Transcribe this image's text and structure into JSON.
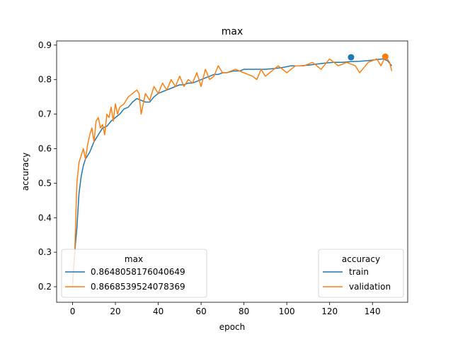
{
  "chart_data": {
    "type": "line",
    "title": "max",
    "xlabel": "epoch",
    "ylabel": "accuracy",
    "xlim": [
      -7.45,
      156.45
    ],
    "ylim": [
      0.155,
      0.912
    ],
    "xticks": [
      0,
      20,
      40,
      60,
      80,
      100,
      120,
      140
    ],
    "yticks": [
      0.2,
      0.3,
      0.4,
      0.5,
      0.6,
      0.7,
      0.8,
      0.9
    ],
    "grid": false,
    "series": [
      {
        "name": "train",
        "color": "#1f77b4",
        "x": [
          0,
          1,
          2,
          3,
          4,
          5,
          6,
          8,
          10,
          12,
          14,
          16,
          18,
          20,
          22,
          24,
          26,
          28,
          30,
          32,
          34,
          36,
          38,
          40,
          42,
          44,
          46,
          48,
          50,
          52,
          54,
          56,
          58,
          60,
          62,
          64,
          66,
          68,
          70,
          72,
          75,
          78,
          80,
          83,
          86,
          90,
          94,
          98,
          102,
          106,
          110,
          114,
          118,
          122,
          126,
          130,
          134,
          138,
          142,
          145,
          147,
          149
        ],
        "values": [
          0.21,
          0.3,
          0.37,
          0.47,
          0.52,
          0.55,
          0.57,
          0.59,
          0.62,
          0.64,
          0.66,
          0.665,
          0.68,
          0.69,
          0.7,
          0.715,
          0.72,
          0.735,
          0.745,
          0.74,
          0.735,
          0.735,
          0.75,
          0.76,
          0.765,
          0.77,
          0.775,
          0.78,
          0.785,
          0.785,
          0.79,
          0.79,
          0.795,
          0.8,
          0.805,
          0.81,
          0.815,
          0.815,
          0.82,
          0.82,
          0.825,
          0.825,
          0.83,
          0.83,
          0.83,
          0.83,
          0.832,
          0.835,
          0.84,
          0.84,
          0.842,
          0.845,
          0.848,
          0.85,
          0.85,
          0.852,
          0.853,
          0.855,
          0.858,
          0.86,
          0.855,
          0.84
        ]
      },
      {
        "name": "validation",
        "color": "#ff7f0e",
        "x": [
          0,
          1,
          2,
          3,
          4,
          5,
          6,
          7,
          8,
          9,
          10,
          11,
          12,
          13,
          14,
          15,
          16,
          17,
          18,
          19,
          20,
          21,
          22,
          24,
          26,
          28,
          30,
          31,
          32,
          34,
          36,
          38,
          40,
          42,
          44,
          46,
          48,
          50,
          52,
          54,
          56,
          58,
          60,
          62,
          64,
          66,
          68,
          70,
          72,
          76,
          80,
          84,
          86,
          88,
          90,
          92,
          96,
          100,
          104,
          108,
          112,
          116,
          120,
          124,
          128,
          132,
          134,
          138,
          142,
          144,
          146,
          148,
          149
        ],
        "values": [
          0.2,
          0.3,
          0.5,
          0.56,
          0.58,
          0.6,
          0.57,
          0.61,
          0.64,
          0.66,
          0.62,
          0.68,
          0.69,
          0.66,
          0.67,
          0.64,
          0.7,
          0.69,
          0.72,
          0.68,
          0.73,
          0.7,
          0.72,
          0.73,
          0.75,
          0.76,
          0.77,
          0.76,
          0.7,
          0.76,
          0.74,
          0.78,
          0.76,
          0.79,
          0.77,
          0.8,
          0.78,
          0.81,
          0.78,
          0.8,
          0.79,
          0.82,
          0.78,
          0.83,
          0.8,
          0.81,
          0.84,
          0.82,
          0.82,
          0.83,
          0.82,
          0.81,
          0.8,
          0.83,
          0.81,
          0.82,
          0.84,
          0.82,
          0.84,
          0.84,
          0.85,
          0.83,
          0.86,
          0.84,
          0.85,
          0.84,
          0.82,
          0.85,
          0.86,
          0.84,
          0.868,
          0.85,
          0.825
        ]
      }
    ],
    "max_markers": [
      {
        "series": "train",
        "x": 130,
        "value": 0.8648058176040649
      },
      {
        "series": "validation",
        "x": 146,
        "value": 0.8668539524078369
      }
    ],
    "legend_max": {
      "title": "max",
      "placement": "lower-left",
      "entries": [
        {
          "label": "0.8648058176040649",
          "color": "#1f77b4"
        },
        {
          "label": "0.8668539524078369",
          "color": "#ff7f0e"
        }
      ]
    },
    "legend_accuracy": {
      "title": "accuracy",
      "placement": "lower-right",
      "entries": [
        {
          "label": "train",
          "color": "#1f77b4"
        },
        {
          "label": "validation",
          "color": "#ff7f0e"
        }
      ]
    }
  }
}
